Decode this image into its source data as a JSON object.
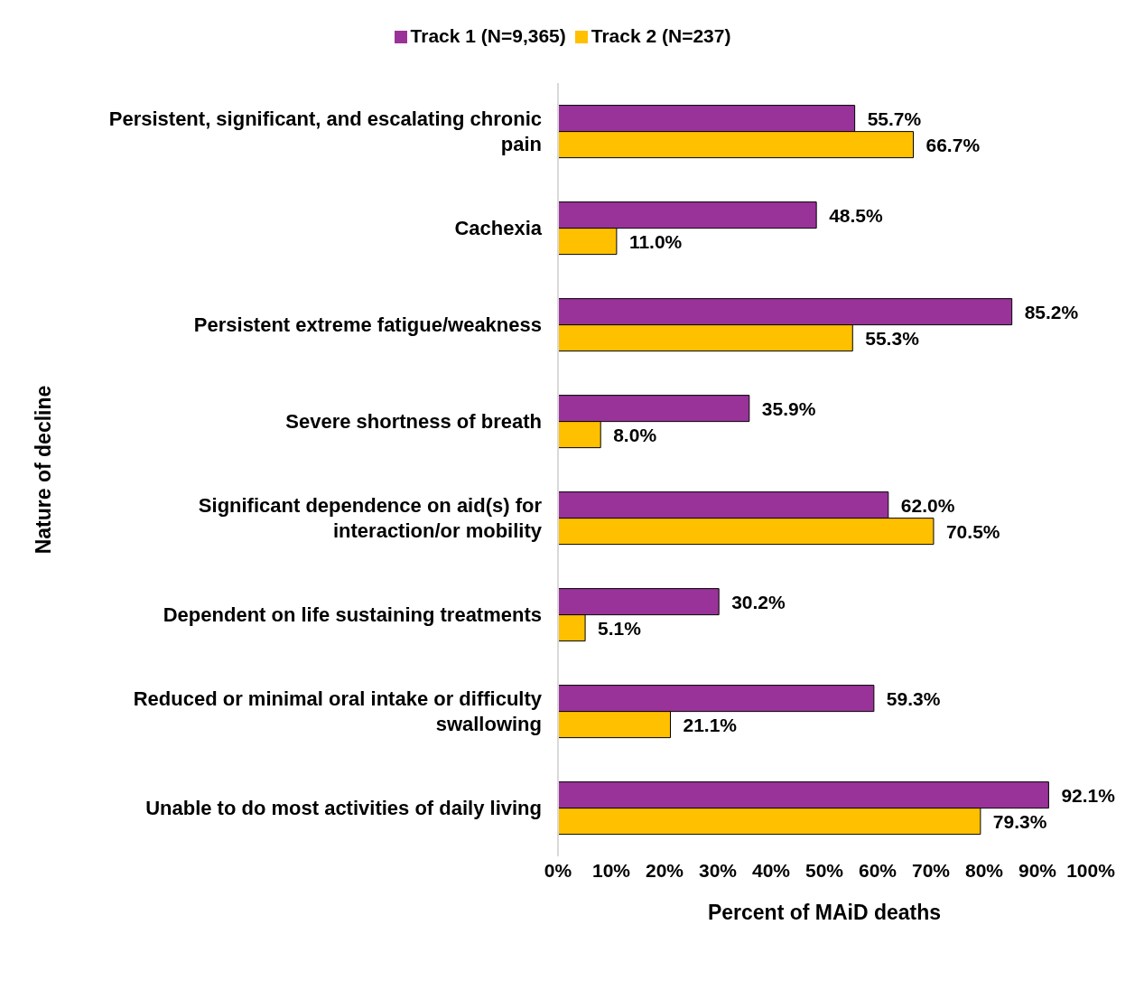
{
  "chart_data": {
    "type": "bar",
    "orientation": "horizontal",
    "xlabel": "Percent of MAiD deaths",
    "ylabel": "Nature of decline",
    "categories": [
      "Persistent, significant, and escalating chronic pain",
      "Cachexia",
      "Persistent extreme fatigue/weakness",
      "Severe shortness of breath",
      "Significant dependence on aid(s) for interaction/or mobility",
      "Dependent on life sustaining treatments",
      "Reduced or minimal oral intake or difficulty swallowing",
      "Unable to do most activities of daily living"
    ],
    "series": [
      {
        "name": "Track 1 (N=9,365)",
        "color": "#993399",
        "values": [
          55.7,
          48.5,
          85.2,
          35.9,
          62.0,
          30.2,
          59.3,
          92.1
        ],
        "value_labels": [
          "55.7%",
          "48.5%",
          "85.2%",
          "35.9%",
          "62.0%",
          "30.2%",
          "59.3%",
          "92.1%"
        ]
      },
      {
        "name": "Track 2 (N=237)",
        "color": "#ffc000",
        "values": [
          66.7,
          11.0,
          55.3,
          8.0,
          70.5,
          5.1,
          21.1,
          79.3
        ],
        "value_labels": [
          "66.7%",
          "11.0%",
          "55.3%",
          "8.0%",
          "70.5%",
          "5.1%",
          "21.1%",
          "79.3%"
        ]
      }
    ],
    "xlim": [
      0,
      100
    ],
    "xticks": [
      {
        "value": 0,
        "label": "0%"
      },
      {
        "value": 10,
        "label": "10%"
      },
      {
        "value": 20,
        "label": "20%"
      },
      {
        "value": 30,
        "label": "30%"
      },
      {
        "value": 40,
        "label": "40%"
      },
      {
        "value": 50,
        "label": "50%"
      },
      {
        "value": 60,
        "label": "60%"
      },
      {
        "value": 70,
        "label": "70%"
      },
      {
        "value": 80,
        "label": "80%"
      },
      {
        "value": 90,
        "label": "90%"
      },
      {
        "value": 100,
        "label": "100%"
      }
    ],
    "grid": false,
    "legend": "top"
  }
}
